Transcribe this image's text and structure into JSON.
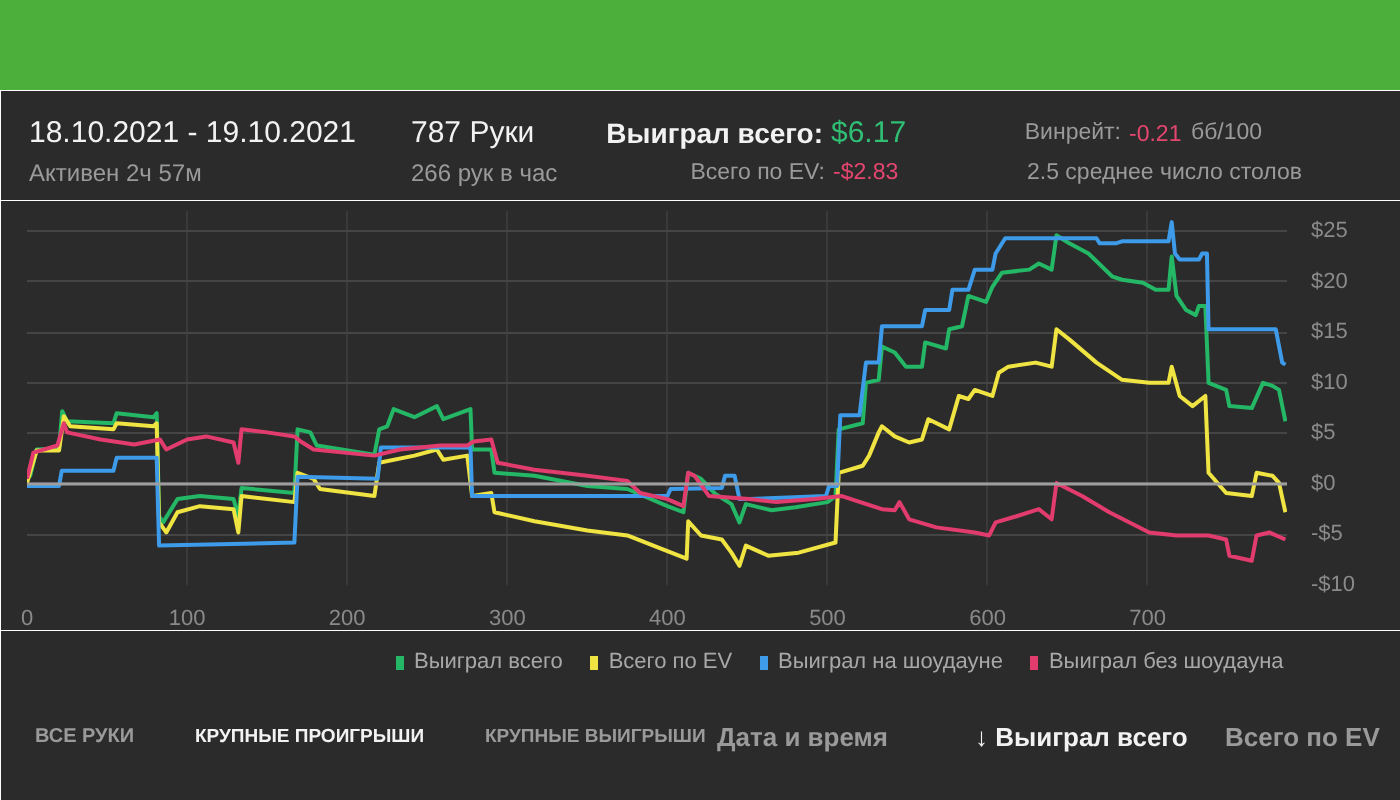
{
  "chart_data": {
    "type": "line",
    "annotations": [
      "18.10.2021 - 19.10.2021",
      "Активен 2ч 57м",
      "787 Руки",
      "266 рук в час",
      "Выиграл всего:",
      "$6.17",
      "Всего по EV:",
      "-$2.83",
      "Винрейт:",
      "-0.21",
      "бб/100",
      "2.5 среднее число столов",
      "ВСЕ РУКИ",
      "КРУПНЫЕ ПРОИГРЫШИ",
      "КРУПНЫЕ ВЫИГРЫШИ",
      "Дата и время",
      "↓ Выиграл всего",
      "Всего по EV"
    ],
    "xlim": [
      0,
      787
    ],
    "xticks": [
      0,
      100,
      200,
      300,
      400,
      500,
      600,
      700
    ],
    "ylim": [
      -10,
      27
    ],
    "yticks": [
      {
        "value": -10,
        "label": "-$10"
      },
      {
        "value": -5,
        "label": "-$5"
      },
      {
        "value": 0,
        "label": "$0"
      },
      {
        "value": 5,
        "label": "$5"
      },
      {
        "value": 10,
        "label": "$10"
      },
      {
        "value": 15,
        "label": "$15"
      },
      {
        "value": 20,
        "label": "$20"
      },
      {
        "value": 25,
        "label": "$25"
      }
    ],
    "grid": true,
    "legend": "bottom",
    "ref_lines": [
      {
        "axis": "y",
        "value": 0,
        "color": "#9e9e9e"
      }
    ],
    "series": [
      {
        "name": "Выиграл всего",
        "color": "#23b766",
        "x": [
          0,
          2,
          6,
          20,
          22,
          25,
          54,
          56,
          79,
          81,
          82.5,
          85,
          94,
          108,
          129,
          132,
          134,
          167,
          169,
          177,
          181,
          217,
          220,
          225,
          229,
          242,
          256,
          260,
          277,
          278,
          290,
          292,
          317,
          350,
          375,
          400,
          410,
          413,
          421,
          430,
          440,
          445,
          449,
          465,
          480,
          500,
          505,
          507,
          522,
          524,
          532,
          534,
          542,
          549,
          559,
          561,
          574,
          576,
          584,
          588,
          599,
          603,
          609,
          626,
          632,
          640,
          643,
          651,
          663,
          678,
          684,
          697,
          705,
          713,
          715,
          718,
          724,
          730,
          732,
          736,
          738,
          749,
          751,
          765,
          772,
          778,
          782,
          786
        ],
        "values": [
          0.5,
          0.8,
          3.4,
          3.5,
          7.2,
          6.2,
          6.0,
          7.0,
          6.6,
          7.0,
          -3.2,
          -3.8,
          -1.5,
          -1.2,
          -1.5,
          -3.2,
          -0.4,
          -0.9,
          5.4,
          5.1,
          3.8,
          2.9,
          5.4,
          5.7,
          7.4,
          6.6,
          7.7,
          6.4,
          7.4,
          3.4,
          3.4,
          1.1,
          0.8,
          -0.2,
          -0.5,
          -2.2,
          -2.8,
          1.1,
          0.5,
          -1.0,
          -2.0,
          -3.8,
          -2.0,
          -2.6,
          -2.3,
          -1.8,
          -1.2,
          5.4,
          6.0,
          10.0,
          10.3,
          13.6,
          13.0,
          11.6,
          11.6,
          14.0,
          13.4,
          15.3,
          15.6,
          18.6,
          18.0,
          19.5,
          20.9,
          21.2,
          21.8,
          21.2,
          24.6,
          23.8,
          22.8,
          20.5,
          20.2,
          19.9,
          19.2,
          19.2,
          22.5,
          18.6,
          17.2,
          16.7,
          17.6,
          17.6,
          10.0,
          9.3,
          7.7,
          7.5,
          10.0,
          9.7,
          9.3,
          6.2
        ]
      },
      {
        "name": "Всего по EV",
        "color": "#f0e442",
        "x": [
          0,
          6,
          20,
          23,
          27,
          54,
          56,
          79,
          81,
          82.5,
          87,
          94,
          108,
          129,
          132,
          134,
          167,
          169,
          179,
          183,
          217,
          220,
          242,
          256,
          260,
          275,
          278,
          290,
          292,
          317,
          350,
          375,
          396,
          412,
          413,
          421,
          434,
          440,
          445,
          449,
          463,
          482,
          505,
          507,
          522,
          526,
          532,
          534,
          542,
          551,
          559,
          563,
          576,
          582,
          588,
          592,
          603,
          607,
          613,
          630,
          640,
          643,
          651,
          668,
          684,
          701,
          713,
          715,
          720,
          728,
          736,
          738,
          749,
          765,
          768,
          778,
          782,
          786
        ],
        "values": [
          0.1,
          3.3,
          3.3,
          6.7,
          5.7,
          5.4,
          6.0,
          5.7,
          6.0,
          -3.8,
          -4.8,
          -2.8,
          -2.2,
          -2.5,
          -4.8,
          -1.2,
          -1.8,
          1.1,
          0.5,
          -0.5,
          -1.2,
          2.1,
          2.8,
          3.4,
          2.4,
          2.8,
          -1.2,
          -0.9,
          -2.8,
          -3.7,
          -4.6,
          -5.1,
          -6.4,
          -7.4,
          -3.7,
          -5.1,
          -5.5,
          -6.8,
          -8.1,
          -6.1,
          -7.1,
          -6.8,
          -5.8,
          1.1,
          1.8,
          2.8,
          5.1,
          5.7,
          4.7,
          4.1,
          4.4,
          6.4,
          5.4,
          8.7,
          8.4,
          9.3,
          8.7,
          11.0,
          11.6,
          12.0,
          11.6,
          15.3,
          14.3,
          12.0,
          10.3,
          10.0,
          10.0,
          11.6,
          8.7,
          7.7,
          8.7,
          1.1,
          -0.9,
          -1.2,
          1.1,
          0.8,
          0.1,
          -2.8
        ]
      },
      {
        "name": "Выиграл на шоудауне",
        "color": "#3d9be9",
        "x": [
          0,
          20,
          21.7,
          54,
          56,
          81,
          82.5,
          167,
          169,
          219,
          221,
          277,
          278,
          400,
          402,
          434,
          436,
          442,
          445,
          451,
          499,
          501,
          506,
          508,
          520,
          524,
          532,
          534,
          559,
          561,
          576,
          578,
          588,
          592,
          603,
          605,
          611,
          668,
          670,
          680,
          684,
          713,
          715,
          717,
          720,
          732,
          734,
          737,
          738,
          780,
          784,
          786
        ],
        "values": [
          -0.2,
          -0.2,
          1.3,
          1.3,
          2.6,
          2.6,
          -6.1,
          -5.8,
          0.7,
          0.5,
          3.6,
          3.6,
          -1.2,
          -1.2,
          -0.5,
          -0.4,
          0.8,
          0.8,
          -1.5,
          -1.5,
          -1.2,
          -0.2,
          -0.2,
          6.8,
          6.8,
          12.0,
          12.0,
          15.6,
          15.6,
          17.2,
          17.2,
          19.2,
          19.2,
          21.2,
          21.2,
          22.8,
          24.3,
          24.3,
          23.8,
          23.8,
          24.0,
          24.0,
          25.9,
          22.8,
          22.2,
          22.2,
          22.8,
          22.8,
          15.3,
          15.3,
          12.0,
          11.8
        ]
      },
      {
        "name": "Выиграл без шоудауна",
        "color": "#e23c6e",
        "x": [
          0,
          4,
          19,
          23,
          25,
          46,
          67,
          83,
          87,
          100,
          112,
          129,
          132,
          134,
          150,
          167,
          171,
          179,
          217,
          233,
          258,
          275,
          279,
          290,
          294,
          317,
          350,
          375,
          383,
          400,
          410,
          413,
          417,
          426,
          451,
          468,
          492,
          509,
          534,
          542,
          545,
          551,
          568,
          592,
          601,
          605,
          618,
          632,
          640,
          643,
          659,
          676,
          701,
          718,
          738,
          749,
          751,
          765,
          768,
          776,
          786
        ],
        "values": [
          0.5,
          3.1,
          3.8,
          6.0,
          5.1,
          4.4,
          3.9,
          4.4,
          3.4,
          4.4,
          4.7,
          4.1,
          2.1,
          5.4,
          5.1,
          4.7,
          4.2,
          3.4,
          2.8,
          3.4,
          3.8,
          3.8,
          4.2,
          4.4,
          2.1,
          1.4,
          0.8,
          0.3,
          -0.9,
          -1.5,
          -2.2,
          1.1,
          0.8,
          -1.2,
          -1.5,
          -1.8,
          -1.5,
          -1.2,
          -2.5,
          -2.6,
          -1.8,
          -3.5,
          -4.3,
          -4.8,
          -5.1,
          -3.8,
          -3.2,
          -2.5,
          -3.5,
          0.1,
          -1.2,
          -2.8,
          -4.8,
          -5.1,
          -5.1,
          -5.5,
          -7.1,
          -7.6,
          -5.1,
          -4.8,
          -5.5
        ]
      }
    ]
  }
}
